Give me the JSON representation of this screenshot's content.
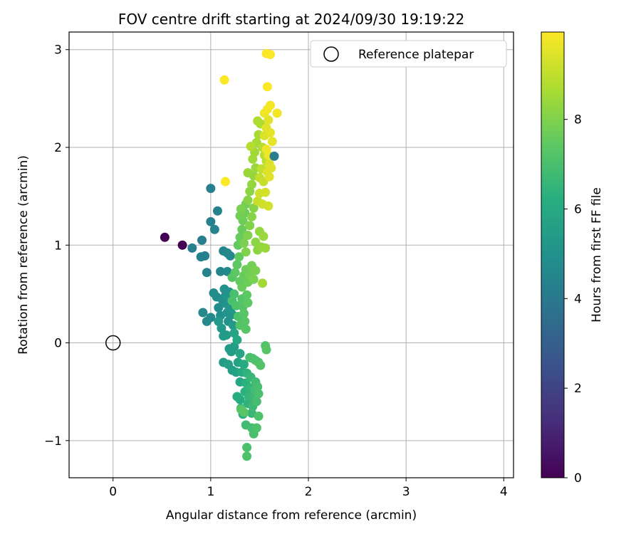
{
  "chart_data": {
    "type": "scatter",
    "title": "FOV centre drift starting at 2024/09/30 19:19:22",
    "xlabel": "Angular distance from reference (arcmin)",
    "ylabel": "Rotation from reference (arcmin)",
    "xlim": [
      -0.45,
      4.1
    ],
    "ylim": [
      -1.38,
      3.18
    ],
    "xticks": [
      "0",
      "1",
      "2",
      "3",
      "4"
    ],
    "yticks": [
      "−1",
      "0",
      "1",
      "2",
      "3"
    ],
    "grid": true,
    "legend": {
      "placement": "top-right",
      "entries": [
        "Reference platepar"
      ]
    },
    "colorbar": {
      "label": "Hours from first FF file",
      "range": [
        0,
        9.95
      ],
      "ticks": [
        "0",
        "2",
        "4",
        "6",
        "8"
      ],
      "colormap": "viridis"
    },
    "reference_point": {
      "x": 0,
      "y": 0
    },
    "points": [
      {
        "x": 0.53,
        "y": 1.08,
        "t": 0.0
      },
      {
        "x": 0.71,
        "y": 1.0,
        "t": 0.0
      },
      {
        "x": 0.81,
        "y": 0.97,
        "t": 4.2
      },
      {
        "x": 0.91,
        "y": 1.05,
        "t": 4.2
      },
      {
        "x": 0.9,
        "y": 0.88,
        "t": 4.3
      },
      {
        "x": 0.94,
        "y": 0.89,
        "t": 4.3
      },
      {
        "x": 0.96,
        "y": 0.72,
        "t": 4.4
      },
      {
        "x": 1.0,
        "y": 1.58,
        "t": 4.3
      },
      {
        "x": 1.0,
        "y": 1.24,
        "t": 4.3
      },
      {
        "x": 1.04,
        "y": 1.16,
        "t": 4.4
      },
      {
        "x": 1.07,
        "y": 1.35,
        "t": 4.4
      },
      {
        "x": 1.1,
        "y": 0.73,
        "t": 4.5
      },
      {
        "x": 1.13,
        "y": 0.94,
        "t": 4.5
      },
      {
        "x": 1.17,
        "y": 0.92,
        "t": 4.6
      },
      {
        "x": 1.2,
        "y": 0.89,
        "t": 4.6
      },
      {
        "x": 1.17,
        "y": 0.73,
        "t": 4.7
      },
      {
        "x": 0.92,
        "y": 0.31,
        "t": 4.6
      },
      {
        "x": 0.96,
        "y": 0.22,
        "t": 4.6
      },
      {
        "x": 1.0,
        "y": 0.26,
        "t": 4.7
      },
      {
        "x": 1.03,
        "y": 0.51,
        "t": 4.7
      },
      {
        "x": 1.06,
        "y": 0.47,
        "t": 4.8
      },
      {
        "x": 1.08,
        "y": 0.36,
        "t": 4.8
      },
      {
        "x": 1.1,
        "y": 0.28,
        "t": 4.9
      },
      {
        "x": 1.12,
        "y": 0.44,
        "t": 4.9
      },
      {
        "x": 1.14,
        "y": 0.55,
        "t": 5.0
      },
      {
        "x": 1.15,
        "y": 0.48,
        "t": 5.0
      },
      {
        "x": 1.16,
        "y": 0.4,
        "t": 5.0
      },
      {
        "x": 1.17,
        "y": 0.31,
        "t": 5.1
      },
      {
        "x": 1.18,
        "y": 0.22,
        "t": 5.1
      },
      {
        "x": 1.19,
        "y": 0.52,
        "t": 5.1
      },
      {
        "x": 1.2,
        "y": 0.45,
        "t": 5.2
      },
      {
        "x": 1.21,
        "y": 0.36,
        "t": 5.2
      },
      {
        "x": 1.22,
        "y": 0.29,
        "t": 5.2
      },
      {
        "x": 1.23,
        "y": 0.18,
        "t": 5.3
      },
      {
        "x": 1.08,
        "y": 0.22,
        "t": 5.3
      },
      {
        "x": 1.11,
        "y": 0.15,
        "t": 5.3
      },
      {
        "x": 1.13,
        "y": 0.07,
        "t": 5.4
      },
      {
        "x": 1.16,
        "y": 0.08,
        "t": 5.4
      },
      {
        "x": 1.19,
        "y": -0.06,
        "t": 5.4
      },
      {
        "x": 1.21,
        "y": -0.09,
        "t": 5.5
      },
      {
        "x": 1.24,
        "y": -0.04,
        "t": 5.5
      },
      {
        "x": 1.13,
        "y": -0.2,
        "t": 5.5
      },
      {
        "x": 1.18,
        "y": -0.22,
        "t": 5.6
      },
      {
        "x": 1.22,
        "y": -0.28,
        "t": 5.6
      },
      {
        "x": 1.26,
        "y": -0.3,
        "t": 5.7
      },
      {
        "x": 1.28,
        "y": -0.2,
        "t": 5.7
      },
      {
        "x": 1.3,
        "y": -0.11,
        "t": 5.8
      },
      {
        "x": 1.24,
        "y": 0.1,
        "t": 5.8
      },
      {
        "x": 1.27,
        "y": 0.03,
        "t": 5.9
      },
      {
        "x": 1.3,
        "y": -0.4,
        "t": 5.9
      },
      {
        "x": 1.32,
        "y": -0.3,
        "t": 6.0
      },
      {
        "x": 1.34,
        "y": -0.22,
        "t": 6.0
      },
      {
        "x": 1.27,
        "y": -0.55,
        "t": 6.1
      },
      {
        "x": 1.3,
        "y": -0.58,
        "t": 6.1
      },
      {
        "x": 1.31,
        "y": -0.67,
        "t": 6.2
      },
      {
        "x": 1.33,
        "y": -0.73,
        "t": 6.2
      },
      {
        "x": 1.35,
        "y": -0.5,
        "t": 6.3
      },
      {
        "x": 1.36,
        "y": -0.41,
        "t": 6.3
      },
      {
        "x": 1.37,
        "y": -0.31,
        "t": 6.4
      },
      {
        "x": 1.38,
        "y": -0.62,
        "t": 6.4
      },
      {
        "x": 1.39,
        "y": -0.55,
        "t": 6.5
      },
      {
        "x": 1.4,
        "y": -0.46,
        "t": 6.5
      },
      {
        "x": 1.41,
        "y": -0.35,
        "t": 6.6
      },
      {
        "x": 1.42,
        "y": -0.72,
        "t": 6.6
      },
      {
        "x": 1.43,
        "y": -0.65,
        "t": 6.7
      },
      {
        "x": 1.44,
        "y": -0.57,
        "t": 6.7
      },
      {
        "x": 1.45,
        "y": -0.48,
        "t": 6.8
      },
      {
        "x": 1.46,
        "y": -0.4,
        "t": 6.8
      },
      {
        "x": 1.47,
        "y": -0.6,
        "t": 6.9
      },
      {
        "x": 1.48,
        "y": -0.45,
        "t": 6.9
      },
      {
        "x": 1.49,
        "y": -0.52,
        "t": 7.0
      },
      {
        "x": 1.36,
        "y": -0.84,
        "t": 6.8
      },
      {
        "x": 1.42,
        "y": -0.87,
        "t": 6.9
      },
      {
        "x": 1.44,
        "y": -0.93,
        "t": 7.0
      },
      {
        "x": 1.47,
        "y": -0.87,
        "t": 7.1
      },
      {
        "x": 1.49,
        "y": -0.75,
        "t": 7.1
      },
      {
        "x": 1.37,
        "y": -1.07,
        "t": 7.0
      },
      {
        "x": 1.37,
        "y": -1.16,
        "t": 7.1
      },
      {
        "x": 1.31,
        "y": -0.68,
        "t": 7.3
      },
      {
        "x": 1.34,
        "y": -0.71,
        "t": 7.3
      },
      {
        "x": 1.4,
        "y": -0.15,
        "t": 7.0
      },
      {
        "x": 1.43,
        "y": -0.16,
        "t": 7.0
      },
      {
        "x": 1.46,
        "y": -0.18,
        "t": 7.1
      },
      {
        "x": 1.49,
        "y": -0.2,
        "t": 7.1
      },
      {
        "x": 1.51,
        "y": -0.23,
        "t": 7.2
      },
      {
        "x": 1.56,
        "y": -0.03,
        "t": 7.2
      },
      {
        "x": 1.57,
        "y": -0.07,
        "t": 7.3
      },
      {
        "x": 1.22,
        "y": 0.43,
        "t": 7.0
      },
      {
        "x": 1.24,
        "y": 0.5,
        "t": 7.0
      },
      {
        "x": 1.26,
        "y": 0.38,
        "t": 7.1
      },
      {
        "x": 1.28,
        "y": 0.27,
        "t": 7.1
      },
      {
        "x": 1.3,
        "y": 0.18,
        "t": 7.2
      },
      {
        "x": 1.32,
        "y": 0.45,
        "t": 7.2
      },
      {
        "x": 1.33,
        "y": 0.37,
        "t": 7.2
      },
      {
        "x": 1.34,
        "y": 0.3,
        "t": 7.3
      },
      {
        "x": 1.35,
        "y": 0.22,
        "t": 7.3
      },
      {
        "x": 1.36,
        "y": 0.14,
        "t": 7.3
      },
      {
        "x": 1.37,
        "y": 0.49,
        "t": 7.4
      },
      {
        "x": 1.38,
        "y": 0.41,
        "t": 7.4
      },
      {
        "x": 1.22,
        "y": 0.67,
        "t": 7.3
      },
      {
        "x": 1.25,
        "y": 0.72,
        "t": 7.4
      },
      {
        "x": 1.27,
        "y": 0.8,
        "t": 7.4
      },
      {
        "x": 1.29,
        "y": 0.88,
        "t": 7.5
      },
      {
        "x": 1.3,
        "y": 0.63,
        "t": 7.5
      },
      {
        "x": 1.32,
        "y": 0.57,
        "t": 7.6
      },
      {
        "x": 1.34,
        "y": 0.69,
        "t": 7.6
      },
      {
        "x": 1.36,
        "y": 0.75,
        "t": 7.7
      },
      {
        "x": 1.38,
        "y": 0.62,
        "t": 7.7
      },
      {
        "x": 1.4,
        "y": 0.7,
        "t": 7.8
      },
      {
        "x": 1.42,
        "y": 0.79,
        "t": 7.8
      },
      {
        "x": 1.44,
        "y": 0.65,
        "t": 7.9
      },
      {
        "x": 1.46,
        "y": 0.74,
        "t": 7.9
      },
      {
        "x": 1.28,
        "y": 1.0,
        "t": 7.5
      },
      {
        "x": 1.3,
        "y": 1.08,
        "t": 7.6
      },
      {
        "x": 1.32,
        "y": 1.16,
        "t": 7.6
      },
      {
        "x": 1.33,
        "y": 1.25,
        "t": 7.7
      },
      {
        "x": 1.35,
        "y": 1.33,
        "t": 7.7
      },
      {
        "x": 1.36,
        "y": 1.42,
        "t": 7.8
      },
      {
        "x": 1.3,
        "y": 1.3,
        "t": 7.8
      },
      {
        "x": 1.31,
        "y": 1.37,
        "t": 7.9
      },
      {
        "x": 1.34,
        "y": 1.02,
        "t": 7.9
      },
      {
        "x": 1.36,
        "y": 0.93,
        "t": 8.0
      },
      {
        "x": 1.38,
        "y": 1.1,
        "t": 8.0
      },
      {
        "x": 1.4,
        "y": 1.2,
        "t": 8.0
      },
      {
        "x": 1.42,
        "y": 1.29,
        "t": 8.1
      },
      {
        "x": 1.44,
        "y": 1.38,
        "t": 8.1
      },
      {
        "x": 1.46,
        "y": 1.03,
        "t": 8.2
      },
      {
        "x": 1.48,
        "y": 0.95,
        "t": 8.2
      },
      {
        "x": 1.5,
        "y": 1.14,
        "t": 8.3
      },
      {
        "x": 1.52,
        "y": 0.98,
        "t": 8.3
      },
      {
        "x": 1.54,
        "y": 1.09,
        "t": 8.4
      },
      {
        "x": 1.56,
        "y": 0.97,
        "t": 8.4
      },
      {
        "x": 1.53,
        "y": 0.61,
        "t": 8.5
      },
      {
        "x": 1.38,
        "y": 1.46,
        "t": 8.1
      },
      {
        "x": 1.4,
        "y": 1.55,
        "t": 8.2
      },
      {
        "x": 1.42,
        "y": 1.62,
        "t": 8.3
      },
      {
        "x": 1.44,
        "y": 1.71,
        "t": 8.3
      },
      {
        "x": 1.46,
        "y": 1.79,
        "t": 8.4
      },
      {
        "x": 1.38,
        "y": 1.74,
        "t": 8.4
      },
      {
        "x": 1.43,
        "y": 1.88,
        "t": 8.5
      },
      {
        "x": 1.45,
        "y": 1.95,
        "t": 8.5
      },
      {
        "x": 1.47,
        "y": 2.05,
        "t": 8.6
      },
      {
        "x": 1.49,
        "y": 2.13,
        "t": 8.6
      },
      {
        "x": 1.51,
        "y": 2.24,
        "t": 8.7
      },
      {
        "x": 1.48,
        "y": 2.27,
        "t": 8.7
      },
      {
        "x": 1.53,
        "y": 2.0,
        "t": 8.8
      },
      {
        "x": 1.41,
        "y": 2.01,
        "t": 8.8
      },
      {
        "x": 1.55,
        "y": 1.92,
        "t": 8.9
      },
      {
        "x": 1.57,
        "y": 1.86,
        "t": 8.9
      },
      {
        "x": 1.5,
        "y": 1.69,
        "t": 9.0
      },
      {
        "x": 1.52,
        "y": 1.78,
        "t": 9.0
      },
      {
        "x": 1.54,
        "y": 1.65,
        "t": 9.1
      },
      {
        "x": 1.48,
        "y": 1.45,
        "t": 9.1
      },
      {
        "x": 1.5,
        "y": 1.53,
        "t": 9.2
      },
      {
        "x": 1.53,
        "y": 1.42,
        "t": 9.2
      },
      {
        "x": 1.56,
        "y": 1.54,
        "t": 9.3
      },
      {
        "x": 1.59,
        "y": 1.4,
        "t": 9.3
      },
      {
        "x": 1.58,
        "y": 1.75,
        "t": 9.4
      },
      {
        "x": 1.6,
        "y": 1.83,
        "t": 9.4
      },
      {
        "x": 1.62,
        "y": 1.79,
        "t": 9.5
      },
      {
        "x": 1.55,
        "y": 2.12,
        "t": 9.4
      },
      {
        "x": 1.57,
        "y": 2.2,
        "t": 9.5
      },
      {
        "x": 1.59,
        "y": 2.28,
        "t": 9.5
      },
      {
        "x": 1.61,
        "y": 2.15,
        "t": 9.6
      },
      {
        "x": 1.63,
        "y": 2.06,
        "t": 9.6
      },
      {
        "x": 1.57,
        "y": 1.98,
        "t": 9.7
      },
      {
        "x": 1.59,
        "y": 1.92,
        "t": 9.7
      },
      {
        "x": 1.55,
        "y": 2.35,
        "t": 9.7
      },
      {
        "x": 1.58,
        "y": 2.39,
        "t": 9.8
      },
      {
        "x": 1.61,
        "y": 2.43,
        "t": 9.8
      },
      {
        "x": 1.68,
        "y": 2.35,
        "t": 9.8
      },
      {
        "x": 1.58,
        "y": 2.62,
        "t": 9.9
      },
      {
        "x": 1.57,
        "y": 2.96,
        "t": 9.9
      },
      {
        "x": 1.61,
        "y": 2.95,
        "t": 9.9
      },
      {
        "x": 1.14,
        "y": 2.69,
        "t": 9.9
      },
      {
        "x": 1.15,
        "y": 1.65,
        "t": 9.9
      },
      {
        "x": 1.65,
        "y": 1.91,
        "t": 4.2
      },
      {
        "x": 1.6,
        "y": 1.7,
        "t": 9.5
      }
    ]
  }
}
